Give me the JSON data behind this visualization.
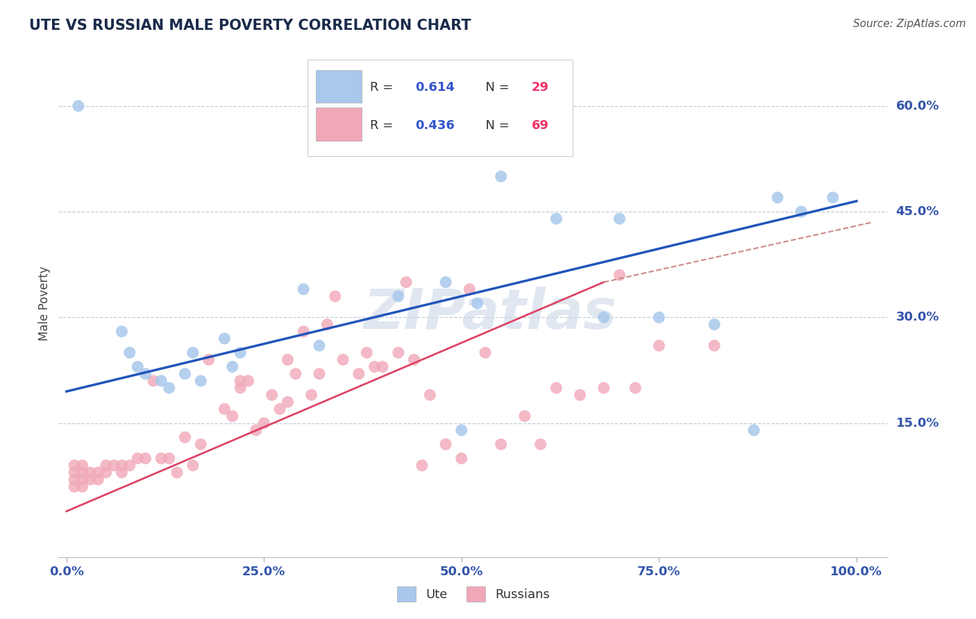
{
  "title": "UTE VS RUSSIAN MALE POVERTY CORRELATION CHART",
  "source": "Source: ZipAtlas.com",
  "ylabel": "Male Poverty",
  "y_tick_labels": [
    "15.0%",
    "30.0%",
    "45.0%",
    "60.0%"
  ],
  "y_tick_values": [
    0.15,
    0.3,
    0.45,
    0.6
  ],
  "x_tick_values": [
    0.0,
    0.25,
    0.5,
    0.75,
    1.0
  ],
  "x_tick_labels": [
    "0.0%",
    "25.0%",
    "50.0%",
    "75.0%",
    "100.0%"
  ],
  "xlim": [
    -0.01,
    1.04
  ],
  "ylim": [
    -0.04,
    0.68
  ],
  "legend_label_blue": "Ute",
  "legend_label_pink": "Russians",
  "blue_color": "#a8c8ec",
  "pink_color": "#f0a8b8",
  "blue_line_color": "#2255bb",
  "pink_line_color": "#dd4466",
  "dashed_line_color": "#cc8888",
  "watermark_text": "ZIPatlas",
  "watermark_color": "#ccd8e8",
  "title_color": "#1a2a4a",
  "axis_tick_color": "#3355aa",
  "legend_r_color": "#3355cc",
  "legend_n_color": "#ee3366",
  "blue_points_x": [
    0.015,
    0.07,
    0.09,
    0.1,
    0.12,
    0.13,
    0.15,
    0.16,
    0.2,
    0.21,
    0.22,
    0.3,
    0.32,
    0.42,
    0.48,
    0.52,
    0.55,
    0.62,
    0.68,
    0.7,
    0.75,
    0.82,
    0.87,
    0.9,
    0.93,
    0.97,
    0.5,
    0.08,
    0.17
  ],
  "blue_points_y": [
    0.6,
    0.28,
    0.23,
    0.22,
    0.21,
    0.2,
    0.22,
    0.25,
    0.27,
    0.23,
    0.25,
    0.34,
    0.26,
    0.33,
    0.35,
    0.32,
    0.5,
    0.44,
    0.3,
    0.44,
    0.3,
    0.29,
    0.14,
    0.47,
    0.45,
    0.47,
    0.14,
    0.25,
    0.21
  ],
  "pink_points_x": [
    0.01,
    0.01,
    0.01,
    0.01,
    0.02,
    0.02,
    0.02,
    0.02,
    0.03,
    0.03,
    0.04,
    0.04,
    0.05,
    0.05,
    0.06,
    0.07,
    0.07,
    0.08,
    0.09,
    0.1,
    0.11,
    0.12,
    0.13,
    0.14,
    0.15,
    0.16,
    0.17,
    0.18,
    0.2,
    0.21,
    0.22,
    0.22,
    0.23,
    0.24,
    0.25,
    0.26,
    0.27,
    0.28,
    0.28,
    0.29,
    0.3,
    0.31,
    0.32,
    0.33,
    0.34,
    0.35,
    0.37,
    0.38,
    0.39,
    0.4,
    0.42,
    0.43,
    0.44,
    0.45,
    0.46,
    0.48,
    0.5,
    0.51,
    0.53,
    0.55,
    0.58,
    0.6,
    0.62,
    0.65,
    0.68,
    0.7,
    0.72,
    0.75,
    0.82
  ],
  "pink_points_y": [
    0.06,
    0.07,
    0.08,
    0.09,
    0.06,
    0.07,
    0.08,
    0.09,
    0.07,
    0.08,
    0.07,
    0.08,
    0.08,
    0.09,
    0.09,
    0.08,
    0.09,
    0.09,
    0.1,
    0.1,
    0.21,
    0.1,
    0.1,
    0.08,
    0.13,
    0.09,
    0.12,
    0.24,
    0.17,
    0.16,
    0.2,
    0.21,
    0.21,
    0.14,
    0.15,
    0.19,
    0.17,
    0.24,
    0.18,
    0.22,
    0.28,
    0.19,
    0.22,
    0.29,
    0.33,
    0.24,
    0.22,
    0.25,
    0.23,
    0.23,
    0.25,
    0.35,
    0.24,
    0.09,
    0.19,
    0.12,
    0.1,
    0.34,
    0.25,
    0.12,
    0.16,
    0.12,
    0.2,
    0.19,
    0.2,
    0.36,
    0.2,
    0.26,
    0.26
  ],
  "blue_line_x": [
    0.0,
    1.0
  ],
  "blue_line_y": [
    0.195,
    0.465
  ],
  "pink_line_x": [
    0.0,
    0.68
  ],
  "pink_line_y": [
    0.025,
    0.35
  ],
  "dashed_line_x": [
    0.68,
    1.02
  ],
  "dashed_line_y": [
    0.35,
    0.435
  ],
  "background_color": "#ffffff",
  "grid_color": "#c0ccd8"
}
